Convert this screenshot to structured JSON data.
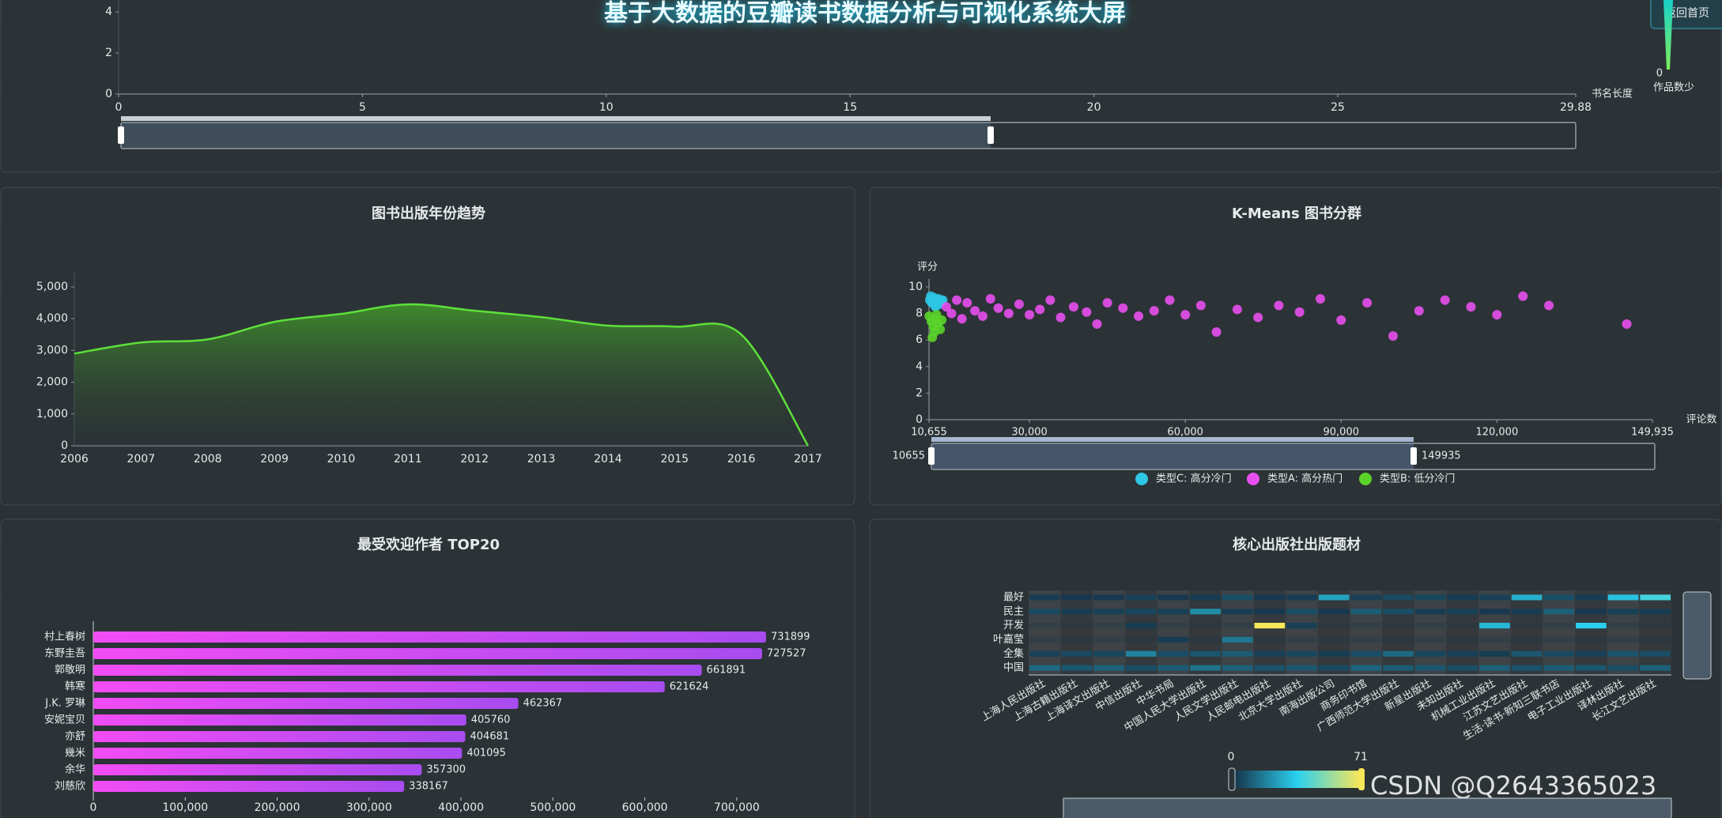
{
  "header": {
    "title": "基于大数据的豆瓣读书数据分析与可视化系统大屏",
    "button": "返回首页"
  },
  "watermark": "CSDN @Q2643365023",
  "chart_data": [
    {
      "type": "line",
      "x_label": "书名长度",
      "xlim": [
        0,
        29.88
      ],
      "xticks": [
        0,
        5,
        10,
        15,
        20,
        25,
        29.88
      ],
      "ylim": [
        0,
        4
      ],
      "yticks": [
        0,
        2,
        4
      ],
      "visual_map": {
        "min": 0,
        "low_label": "作品数少"
      }
    },
    {
      "type": "line",
      "title": "图书出版年份趋势",
      "area": true,
      "color": "#5ee03a",
      "categories": [
        "2006",
        "2007",
        "2008",
        "2009",
        "2010",
        "2011",
        "2012",
        "2013",
        "2014",
        "2015",
        "2016",
        "2017"
      ],
      "values": [
        2900,
        3250,
        3350,
        3900,
        4150,
        4450,
        4250,
        4050,
        3780,
        3750,
        3500,
        0
      ],
      "ylim": [
        0,
        5000
      ],
      "yticks": [
        0,
        {
          "value": 1000,
          "label": "1,000"
        },
        {
          "value": 2000,
          "label": "2,000"
        },
        {
          "value": 3000,
          "label": "3,000"
        },
        {
          "value": 4000,
          "label": "4,000"
        },
        {
          "value": 5000,
          "label": "5,000"
        }
      ]
    },
    {
      "type": "scatter",
      "title": "K-Means 图书分群",
      "x_label": "评论数",
      "y_label": "评分",
      "xlim": [
        10655,
        149935
      ],
      "xticks": [
        {
          "value": 10655,
          "label": "10,655"
        },
        {
          "value": 30000,
          "label": "30,000"
        },
        {
          "value": 60000,
          "label": "60,000"
        },
        {
          "value": 90000,
          "label": "90,000"
        },
        {
          "value": 120000,
          "label": "120,000"
        },
        {
          "value": 149935,
          "label": "149,935"
        }
      ],
      "ylim": [
        0,
        10
      ],
      "yticks": [
        0,
        2,
        4,
        6,
        8,
        10
      ],
      "zoom": {
        "start": 10655,
        "end": 149935
      },
      "series": [
        {
          "name": "类型C: 高分冷门",
          "color": "#2ec7e6",
          "x": [
            10800,
            11200,
            11600,
            12000,
            12500,
            13000,
            11000,
            11900,
            12700,
            13300
          ],
          "values": [
            9.0,
            8.8,
            9.2,
            8.6,
            9.1,
            8.9,
            9.3,
            8.5,
            8.7,
            9.0
          ]
        },
        {
          "name": "类型A: 高分热门",
          "color": "#e84ff0",
          "x": [
            14000,
            15000,
            16000,
            17000,
            18000,
            19500,
            21000,
            22500,
            24000,
            26000,
            28000,
            30000,
            32000,
            34000,
            36000,
            38500,
            41000,
            43000,
            45000,
            48000,
            51000,
            54000,
            57000,
            60000,
            63000,
            66000,
            70000,
            74000,
            78000,
            82000,
            86000,
            90000,
            95000,
            100000,
            105000,
            110000,
            115000,
            120000,
            125000,
            130000,
            145000
          ],
          "values": [
            8.5,
            8.0,
            9.0,
            7.6,
            8.8,
            8.2,
            7.8,
            9.1,
            8.4,
            8.0,
            8.7,
            7.9,
            8.3,
            9.0,
            7.7,
            8.5,
            8.1,
            7.2,
            8.8,
            8.4,
            7.8,
            8.2,
            9.0,
            7.9,
            8.6,
            6.6,
            8.3,
            7.7,
            8.6,
            8.1,
            9.1,
            7.5,
            8.8,
            6.3,
            8.2,
            9.0,
            8.5,
            7.9,
            9.3,
            8.6,
            7.2
          ]
        },
        {
          "name": "类型B: 低分冷门",
          "color": "#5ad42a",
          "x": [
            10700,
            11100,
            11500,
            11900,
            12300,
            12800,
            11300,
            12100,
            13100,
            11700
          ],
          "values": [
            7.8,
            7.4,
            7.0,
            7.6,
            7.2,
            6.8,
            6.2,
            7.9,
            7.5,
            6.6
          ]
        }
      ]
    },
    {
      "type": "hbar",
      "title": "最受欢迎作者 TOP20",
      "categories": [
        "村上春树",
        "东野圭吾",
        "郭敬明",
        "韩寒",
        "J.K. 罗琳",
        "安妮宝贝",
        "亦舒",
        "幾米",
        "余华",
        "刘慈欣"
      ],
      "values": [
        731899,
        727527,
        661891,
        621624,
        462367,
        405760,
        404681,
        401095,
        357300,
        338167
      ],
      "colors": [
        "#f24cf5",
        "#a84cf0"
      ],
      "xlim": [
        0,
        750000
      ],
      "xticks": [
        0,
        {
          "value": 100000,
          "label": "100,000"
        },
        {
          "value": 200000,
          "label": "200,000"
        },
        {
          "value": 300000,
          "label": "300,000"
        },
        {
          "value": 400000,
          "label": "400,000"
        },
        {
          "value": 500000,
          "label": "500,000"
        },
        {
          "value": 600000,
          "label": "600,000"
        },
        {
          "value": 700000,
          "label": "700,000"
        }
      ]
    },
    {
      "type": "heatmap",
      "title": "核心出版社出版题材",
      "categories": [
        "上海人民出版社",
        "上海古籍出版社",
        "上海译文出版社",
        "中信出版社",
        "中华书局",
        "中国人民大学出版社",
        "人民文学出版社",
        "人民邮电出版社",
        "北京大学出版社",
        "南海出版公司",
        "商务印书馆",
        "广西师范大学出版社",
        "新星出版社",
        "未知出版社",
        "机械工业出版社",
        "江苏文艺出版社",
        "生活·读书·新知三联书店",
        "电子工业出版社",
        "译林出版社",
        "长江文艺出版社"
      ],
      "y_categories": [
        "中国",
        "全集",
        "叶嘉莹",
        "开发",
        "民主",
        "最好"
      ],
      "values": [
        [
          12,
          8,
          10,
          6,
          9,
          14,
          10,
          7,
          8,
          5,
          11,
          9,
          8,
          6,
          10,
          7,
          9,
          8,
          6,
          10
        ],
        [
          3,
          5,
          4,
          18,
          6,
          8,
          9,
          3,
          4,
          2,
          6,
          12,
          4,
          3,
          2,
          8,
          5,
          3,
          7,
          6
        ],
        [
          0,
          0,
          0,
          0,
          2,
          0,
          15,
          0,
          0,
          0,
          0,
          0,
          0,
          0,
          0,
          0,
          0,
          0,
          0,
          0
        ],
        [
          0,
          0,
          0,
          2,
          0,
          0,
          0,
          71,
          3,
          0,
          0,
          0,
          0,
          0,
          30,
          0,
          0,
          35,
          0,
          0
        ],
        [
          5,
          2,
          3,
          4,
          3,
          20,
          2,
          1,
          6,
          1,
          9,
          6,
          2,
          3,
          1,
          2,
          10,
          1,
          3,
          2
        ],
        [
          2,
          1,
          1,
          3,
          1,
          2,
          6,
          1,
          2,
          25,
          3,
          5,
          4,
          2,
          3,
          28,
          6,
          2,
          32,
          40
        ]
      ],
      "visual_map": {
        "min": 0,
        "max": 71,
        "colors": [
          "#16344a",
          "#2ad0f0",
          "#f7e75a"
        ]
      }
    }
  ]
}
